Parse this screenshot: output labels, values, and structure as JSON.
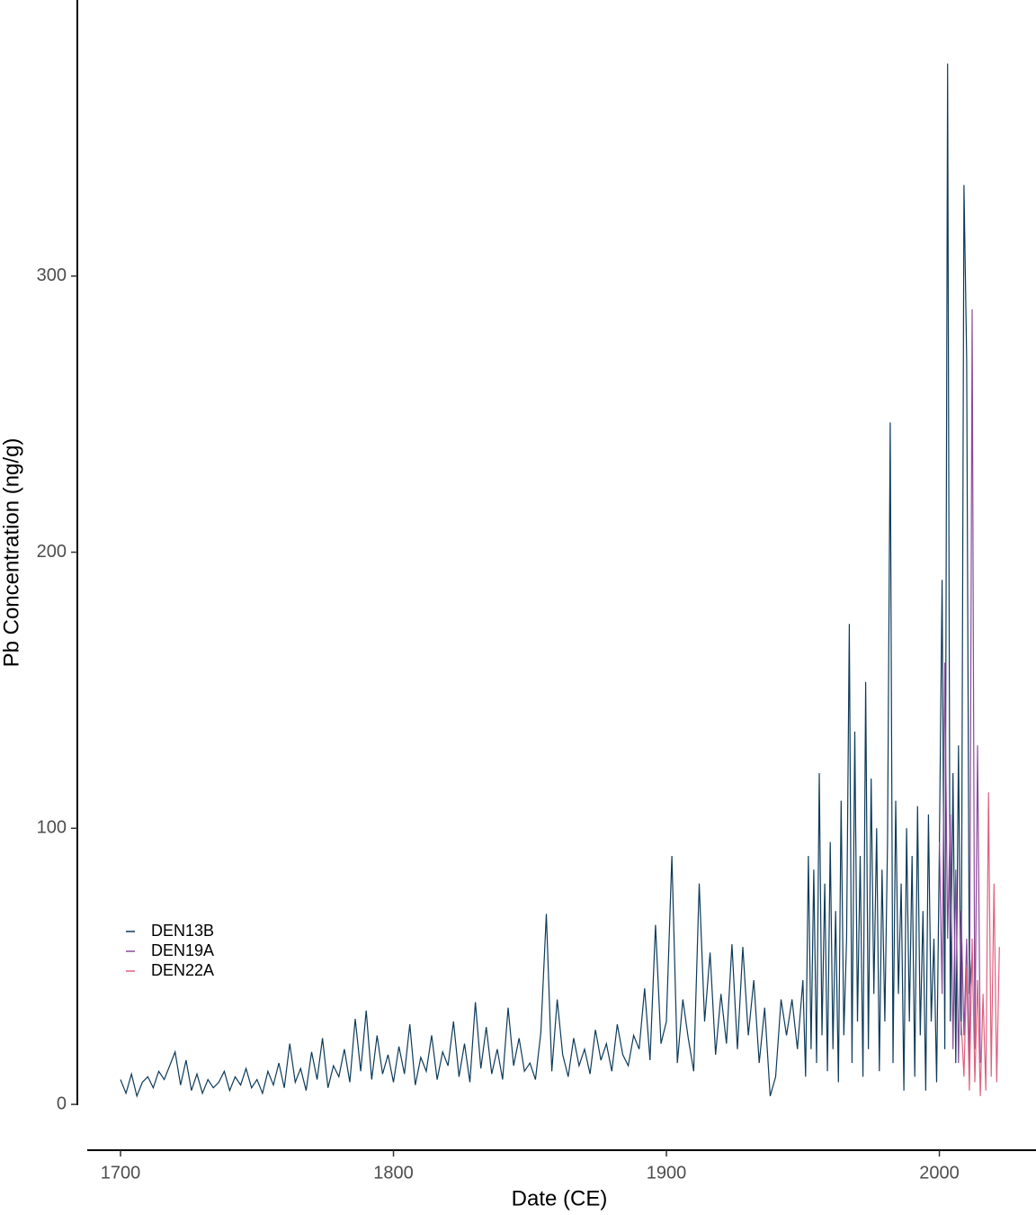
{
  "chart_data": {
    "type": "line",
    "x_label": "Date (CE)",
    "y_label": "Pb Concentration (ng/g)",
    "xlim": [
      1687.8,
      2035.4
    ],
    "ylim": [
      -16.6,
      400
    ],
    "xticks": [
      1700,
      1800,
      1900,
      2000
    ],
    "yticks": [
      0,
      100,
      200,
      300
    ],
    "legend": "bottom-left",
    "series": [
      {
        "name": "DEN13B",
        "color": "#0d3b5a",
        "x": [
          1700,
          1702,
          1704,
          1706,
          1708,
          1710,
          1712,
          1714,
          1716,
          1718,
          1720,
          1722,
          1724,
          1726,
          1728,
          1730,
          1732,
          1734,
          1736,
          1738,
          1740,
          1742,
          1744,
          1746,
          1748,
          1750,
          1752,
          1754,
          1756,
          1758,
          1760,
          1762,
          1764,
          1766,
          1768,
          1770,
          1772,
          1774,
          1776,
          1778,
          1780,
          1782,
          1784,
          1786,
          1788,
          1790,
          1792,
          1794,
          1796,
          1798,
          1800,
          1802,
          1804,
          1806,
          1808,
          1810,
          1812,
          1814,
          1816,
          1818,
          1820,
          1822,
          1824,
          1826,
          1828,
          1830,
          1832,
          1834,
          1836,
          1838,
          1840,
          1842,
          1844,
          1846,
          1848,
          1850,
          1852,
          1854,
          1856,
          1858,
          1860,
          1862,
          1864,
          1866,
          1868,
          1870,
          1872,
          1874,
          1876,
          1878,
          1880,
          1882,
          1884,
          1886,
          1888,
          1890,
          1892,
          1894,
          1896,
          1898,
          1900,
          1902,
          1904,
          1906,
          1908,
          1910,
          1912,
          1914,
          1916,
          1918,
          1920,
          1922,
          1924,
          1926,
          1928,
          1930,
          1932,
          1934,
          1936,
          1938,
          1940,
          1942,
          1944,
          1946,
          1948,
          1950,
          1951,
          1952,
          1953,
          1954,
          1955,
          1956,
          1957,
          1958,
          1959,
          1960,
          1961,
          1962,
          1963,
          1964,
          1965,
          1966,
          1967,
          1968,
          1969,
          1970,
          1971,
          1972,
          1973,
          1974,
          1975,
          1976,
          1977,
          1978,
          1979,
          1980,
          1981,
          1982,
          1983,
          1984,
          1985,
          1986,
          1987,
          1988,
          1989,
          1990,
          1991,
          1992,
          1993,
          1994,
          1995,
          1996,
          1997,
          1998,
          1999,
          2000,
          2001,
          2002,
          2003,
          2004,
          2005,
          2006,
          2007,
          2008,
          2009,
          2010,
          2011,
          2012
        ],
        "values": [
          9,
          4,
          11,
          3,
          8,
          10,
          6,
          12,
          9,
          14,
          19,
          7,
          16,
          5,
          11,
          4,
          9,
          6,
          8,
          12,
          5,
          10,
          7,
          13,
          6,
          9,
          4,
          12,
          7,
          15,
          6,
          22,
          8,
          13,
          5,
          19,
          9,
          24,
          6,
          14,
          10,
          20,
          8,
          31,
          12,
          34,
          9,
          25,
          11,
          18,
          8,
          21,
          11,
          29,
          7,
          17,
          12,
          25,
          9,
          19,
          14,
          30,
          10,
          22,
          8,
          37,
          13,
          28,
          11,
          20,
          9,
          35,
          14,
          24,
          12,
          15,
          9,
          26,
          69,
          12,
          38,
          18,
          10,
          24,
          14,
          20,
          11,
          27,
          16,
          22,
          12,
          29,
          18,
          14,
          25,
          20,
          42,
          16,
          65,
          22,
          30,
          90,
          15,
          38,
          24,
          12,
          80,
          30,
          55,
          18,
          40,
          22,
          58,
          20,
          57,
          25,
          45,
          15,
          35,
          3,
          10,
          38,
          25,
          38,
          20,
          45,
          10,
          90,
          20,
          85,
          15,
          120,
          25,
          80,
          12,
          95,
          20,
          70,
          8,
          110,
          25,
          60,
          174,
          15,
          135,
          30,
          90,
          10,
          153,
          20,
          118,
          40,
          100,
          12,
          85,
          30,
          95,
          247,
          15,
          110,
          40,
          80,
          5,
          100,
          30,
          90,
          10,
          108,
          25,
          70,
          5,
          105,
          30,
          60,
          8,
          95,
          190,
          20,
          377,
          30,
          120,
          15,
          130,
          25,
          333,
          270,
          40,
          55
        ]
      },
      {
        "name": "DEN19A",
        "color": "#8b4a9c",
        "x": [
          2000,
          2001,
          2002,
          2003,
          2004,
          2005,
          2006,
          2007,
          2008,
          2009,
          2010,
          2011,
          2012,
          2013,
          2014,
          2015
        ],
        "values": [
          95,
          40,
          160,
          60,
          105,
          20,
          85,
          15,
          70,
          25,
          60,
          10,
          288,
          20,
          130,
          15
        ]
      },
      {
        "name": "DEN22A",
        "color": "#e0607e",
        "x": [
          2008,
          2009,
          2010,
          2011,
          2012,
          2013,
          2014,
          2015,
          2016,
          2017,
          2018,
          2019,
          2020,
          2021,
          2022
        ],
        "values": [
          30,
          10,
          50,
          5,
          60,
          8,
          45,
          3,
          40,
          5,
          113,
          10,
          80,
          8,
          57
        ]
      }
    ]
  }
}
